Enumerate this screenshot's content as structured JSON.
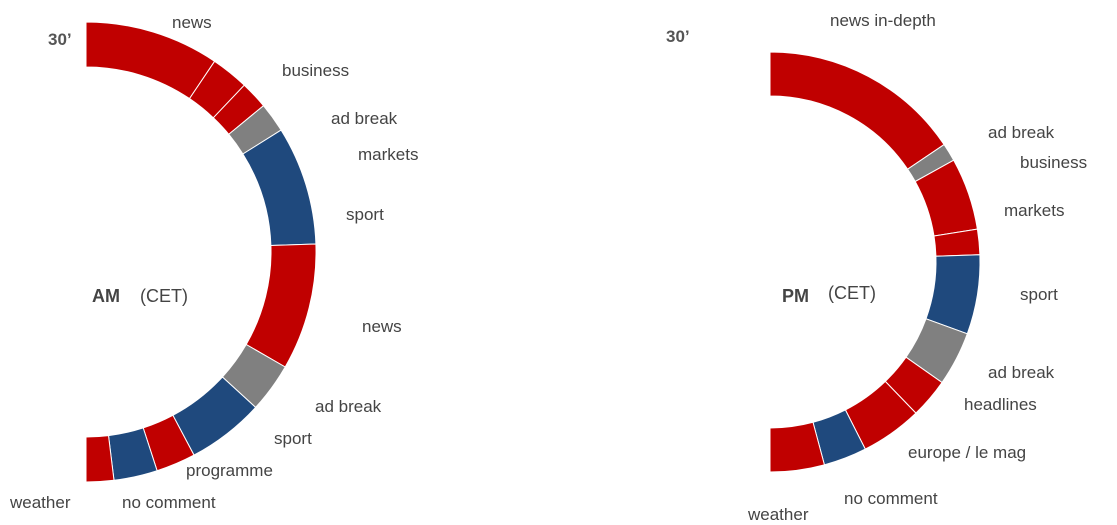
{
  "colors": {
    "red": "#C00000",
    "grey": "#808080",
    "blue": "#1F497D",
    "separator": "#ffffff"
  },
  "charts": [
    {
      "id": "am",
      "start_mark": "30’",
      "period": "AM",
      "timezone": "(CET)",
      "segments": [
        {
          "label": "news",
          "color": "red"
        },
        {
          "label": "business",
          "color": "red"
        },
        {
          "label": "ad break",
          "color": "red"
        },
        {
          "label": "markets",
          "color": "grey"
        },
        {
          "label": "sport",
          "color": "blue"
        },
        {
          "label": "news",
          "color": "red"
        },
        {
          "label": "ad break",
          "color": "grey"
        },
        {
          "label": "sport",
          "color": "blue"
        },
        {
          "label": "programme",
          "color": "red"
        },
        {
          "label": "no comment",
          "color": "blue"
        },
        {
          "label": "weather",
          "color": "red"
        }
      ]
    },
    {
      "id": "pm",
      "start_mark": "30’",
      "period": "PM",
      "timezone": "(CET)",
      "segments": [
        {
          "label": "news in-depth",
          "color": "red"
        },
        {
          "label": "ad break",
          "color": "grey"
        },
        {
          "label": "business",
          "color": "red"
        },
        {
          "label": "markets",
          "color": "red"
        },
        {
          "label": "sport",
          "color": "blue"
        },
        {
          "label": "ad break",
          "color": "grey"
        },
        {
          "label": "headlines",
          "color": "red"
        },
        {
          "label": "europe / le mag",
          "color": "red"
        },
        {
          "label": "no comment",
          "color": "blue"
        },
        {
          "label": "weather",
          "color": "red"
        }
      ]
    }
  ]
}
